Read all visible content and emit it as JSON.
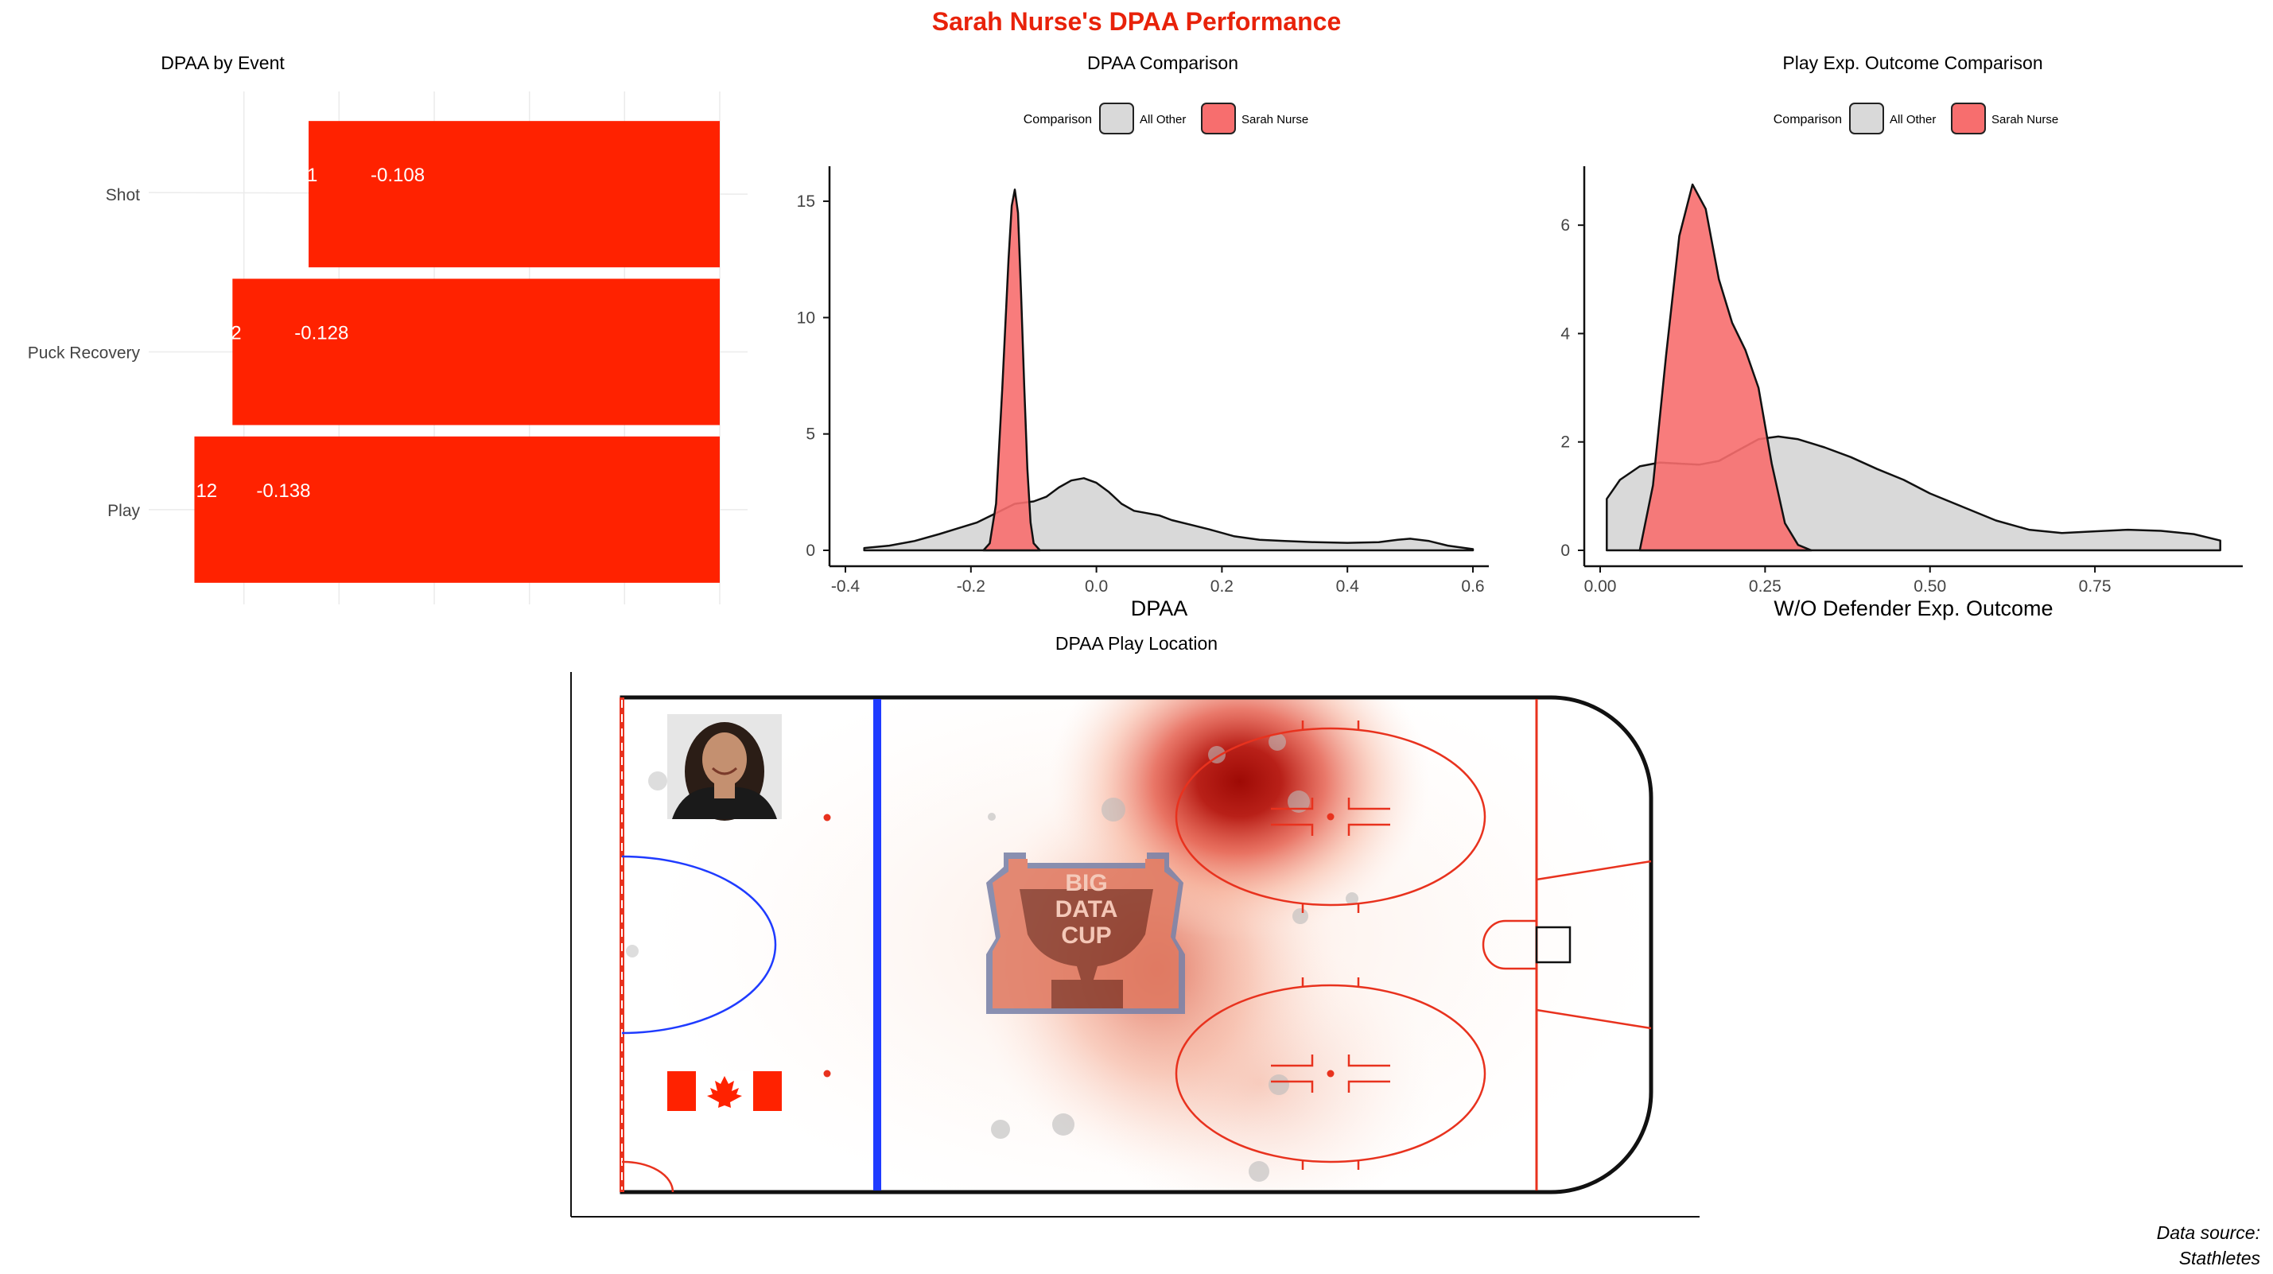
{
  "title": "Sarah Nurse's DPAA Performance",
  "source_line1": "Data source:",
  "source_line2": "Stathletes",
  "colors": {
    "title": "#e8220a",
    "bar": "#ff2200",
    "player": "#f76e6e",
    "other": "#d9d9d9",
    "heat": "#b80f0a",
    "rink_red": "#e8321e",
    "blue_line": "#1f3bff"
  },
  "chart_data": [
    {
      "type": "bar",
      "title": "DPAA by Event",
      "categories": [
        "Shot",
        "Puck Recovery",
        "Play"
      ],
      "values": [
        -0.108,
        -0.128,
        -0.138
      ],
      "value_labels": [
        "-0.108",
        "-0.128",
        "-0.138"
      ],
      "counts": [
        "1",
        "2",
        "12"
      ],
      "orientation": "horizontal"
    },
    {
      "type": "area",
      "title": "DPAA Comparison",
      "xlabel": "DPAA",
      "legend_title": "Comparison",
      "legend_position": "top",
      "xlim": [
        -0.4,
        0.6
      ],
      "ylim": [
        0,
        16.3
      ],
      "xticks": [
        "-0.4",
        "-0.2",
        "0.0",
        "0.2",
        "0.4",
        "0.6"
      ],
      "yticks": [
        "0",
        "5",
        "10",
        "15"
      ],
      "series": [
        {
          "name": "All Other",
          "x": [
            -0.37,
            -0.33,
            -0.29,
            -0.25,
            -0.22,
            -0.19,
            -0.16,
            -0.13,
            -0.1,
            -0.08,
            -0.06,
            -0.04,
            -0.02,
            0.0,
            0.02,
            0.04,
            0.06,
            0.08,
            0.1,
            0.12,
            0.15,
            0.18,
            0.22,
            0.26,
            0.3,
            0.35,
            0.4,
            0.45,
            0.48,
            0.5,
            0.53,
            0.56,
            0.6
          ],
          "y": [
            0.1,
            0.2,
            0.4,
            0.7,
            0.95,
            1.2,
            1.6,
            2.0,
            2.1,
            2.3,
            2.7,
            3.0,
            3.1,
            2.9,
            2.5,
            2.0,
            1.7,
            1.6,
            1.5,
            1.3,
            1.1,
            0.9,
            0.6,
            0.45,
            0.4,
            0.35,
            0.32,
            0.35,
            0.45,
            0.5,
            0.4,
            0.2,
            0.05
          ]
        },
        {
          "name": "Sarah Nurse",
          "x": [
            -0.18,
            -0.17,
            -0.16,
            -0.15,
            -0.14,
            -0.135,
            -0.13,
            -0.125,
            -0.12,
            -0.115,
            -0.11,
            -0.105,
            -0.1,
            -0.09
          ],
          "y": [
            0.0,
            0.3,
            2.0,
            7.0,
            12.5,
            14.8,
            15.5,
            14.5,
            11.0,
            7.0,
            3.5,
            1.2,
            0.3,
            0.0
          ]
        }
      ]
    },
    {
      "type": "area",
      "title": "Play Exp. Outcome Comparison",
      "xlabel": "W/O Defender Exp. Outcome",
      "legend_title": "Comparison",
      "legend_position": "top",
      "xlim": [
        0,
        0.95
      ],
      "ylim": [
        0,
        7
      ],
      "xticks": [
        "0.00",
        "0.25",
        "0.50",
        "0.75"
      ],
      "yticks": [
        "0",
        "2",
        "4",
        "6"
      ],
      "series": [
        {
          "name": "All Other",
          "x": [
            0.01,
            0.03,
            0.06,
            0.09,
            0.12,
            0.15,
            0.18,
            0.21,
            0.24,
            0.27,
            0.3,
            0.34,
            0.38,
            0.42,
            0.46,
            0.5,
            0.55,
            0.6,
            0.65,
            0.7,
            0.75,
            0.8,
            0.85,
            0.9,
            0.94
          ],
          "y": [
            0.95,
            1.3,
            1.55,
            1.62,
            1.6,
            1.58,
            1.65,
            1.85,
            2.05,
            2.1,
            2.05,
            1.9,
            1.72,
            1.5,
            1.3,
            1.05,
            0.8,
            0.55,
            0.38,
            0.32,
            0.35,
            0.38,
            0.36,
            0.3,
            0.18
          ]
        },
        {
          "name": "Sarah Nurse",
          "x": [
            0.06,
            0.08,
            0.1,
            0.12,
            0.14,
            0.16,
            0.18,
            0.2,
            0.22,
            0.24,
            0.26,
            0.28,
            0.3,
            0.32
          ],
          "y": [
            0.0,
            1.2,
            3.6,
            5.8,
            6.75,
            6.3,
            5.0,
            4.2,
            3.7,
            3.0,
            1.6,
            0.5,
            0.1,
            0.0
          ]
        }
      ]
    },
    {
      "type": "heatmap",
      "title": "DPAA Play Location",
      "hotspots": [
        {
          "x": 0.6,
          "y": 0.83,
          "weight": 1.0
        },
        {
          "x": 0.52,
          "y": 0.45,
          "weight": 0.55
        },
        {
          "x": 0.62,
          "y": 0.22,
          "weight": 0.35
        }
      ]
    }
  ]
}
